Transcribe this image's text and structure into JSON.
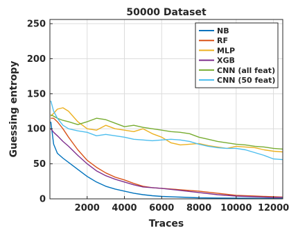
{
  "chart_data": {
    "type": "line",
    "title": "50000 Dataset",
    "xlabel": "Traces",
    "ylabel": "Guessing entropy",
    "xlim": [
      0,
      12500
    ],
    "ylim": [
      0,
      256
    ],
    "xticks": [
      2000,
      4000,
      6000,
      8000,
      10000,
      12000
    ],
    "yticks": [
      0,
      50,
      100,
      150,
      200,
      250
    ],
    "grid": true,
    "legend_position": "top-right",
    "series": [
      {
        "name": "NB",
        "color": "#0072BD",
        "x": [
          50,
          200,
          400,
          700,
          1000,
          1500,
          2000,
          2500,
          3000,
          3500,
          4000,
          4500,
          5000,
          5500,
          6000,
          7000,
          8000,
          9000,
          10000,
          11000,
          12000,
          12500
        ],
        "y": [
          110,
          78,
          65,
          58,
          52,
          42,
          32,
          24,
          18,
          14,
          11,
          8,
          6,
          4.5,
          3.5,
          2.5,
          1.5,
          1.2,
          1,
          0.8,
          0.6,
          0.5
        ]
      },
      {
        "name": "RF",
        "color": "#D95319",
        "x": [
          50,
          200,
          400,
          700,
          1000,
          1500,
          2000,
          2500,
          3000,
          3500,
          4000,
          4500,
          5000,
          5500,
          6000,
          7000,
          8000,
          9000,
          10000,
          11000,
          12000,
          12500
        ],
        "y": [
          115,
          115,
          110,
          100,
          88,
          70,
          55,
          45,
          37,
          31,
          27,
          22,
          18,
          16,
          15,
          13,
          11,
          8,
          5,
          4,
          3,
          2.5
        ]
      },
      {
        "name": "MLP",
        "color": "#EDB120",
        "x": [
          50,
          200,
          400,
          700,
          1000,
          1500,
          2000,
          2500,
          3000,
          3500,
          4000,
          4500,
          5000,
          5500,
          6000,
          6500,
          7000,
          7500,
          8000,
          8500,
          9000,
          9500,
          10000,
          10500,
          11000,
          11500,
          12000,
          12500
        ],
        "y": [
          118,
          122,
          128,
          130,
          125,
          110,
          100,
          98,
          105,
          100,
          98,
          96,
          100,
          93,
          88,
          80,
          77,
          78,
          79,
          76,
          74,
          72,
          75,
          74,
          73,
          70,
          68,
          67
        ]
      },
      {
        "name": "XGB",
        "color": "#7E2F8E",
        "x": [
          50,
          200,
          400,
          700,
          1000,
          1500,
          2000,
          2500,
          3000,
          3500,
          4000,
          4500,
          5000,
          5500,
          6000,
          7000,
          8000,
          9000,
          10000,
          11000,
          12000,
          12500
        ],
        "y": [
          100,
          95,
          90,
          82,
          75,
          62,
          50,
          40,
          33,
          28,
          24,
          20,
          17,
          16,
          15,
          12,
          9,
          6,
          4,
          3,
          2,
          2
        ]
      },
      {
        "name": "CNN (all feat)",
        "color": "#77AC30",
        "x": [
          50,
          200,
          400,
          700,
          1000,
          1500,
          2000,
          2500,
          3000,
          3500,
          4000,
          4500,
          5000,
          5500,
          6000,
          6500,
          7000,
          7500,
          8000,
          8500,
          9000,
          9500,
          10000,
          10500,
          11000,
          11500,
          12000,
          12500
        ],
        "y": [
          120,
          118,
          115,
          112,
          110,
          106,
          110,
          115,
          113,
          108,
          103,
          105,
          102,
          100,
          98,
          96,
          95,
          93,
          88,
          85,
          82,
          80,
          78,
          77,
          75,
          74,
          72,
          71
        ]
      },
      {
        "name": "CNN (50 feat)",
        "color": "#4DBEEE",
        "x": [
          50,
          200,
          400,
          700,
          1000,
          1500,
          2000,
          2500,
          3000,
          3500,
          4000,
          4500,
          5000,
          5500,
          6000,
          6500,
          7000,
          7500,
          8000,
          8500,
          9000,
          9500,
          10000,
          10500,
          11000,
          11500,
          12000,
          12500
        ],
        "y": [
          140,
          125,
          115,
          105,
          100,
          97,
          95,
          90,
          92,
          90,
          88,
          85,
          84,
          83,
          84,
          85,
          84,
          82,
          78,
          75,
          73,
          72,
          72,
          70,
          66,
          62,
          57,
          56
        ]
      }
    ]
  }
}
